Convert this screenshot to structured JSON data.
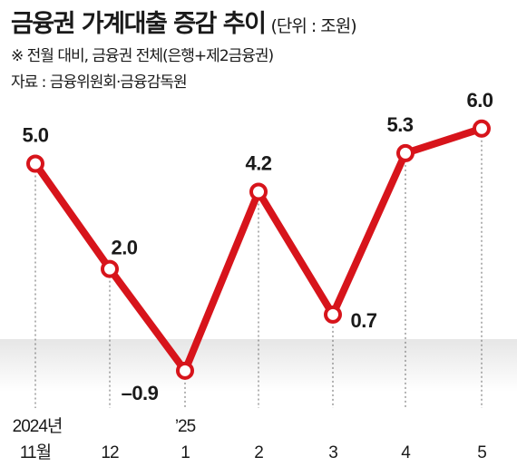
{
  "header": {
    "title": "금융권 가계대출 증감 추이",
    "unit": "(단위 : 조원)",
    "note": "※ 전월 대비, 금융권 전체(은행+제2금융권)",
    "source": "자료 : 금융위원회·금융감독원"
  },
  "chart_data": {
    "type": "line",
    "title": "금융권 가계대출 증감 추이",
    "unit": "조원",
    "categories": [
      "11월",
      "12",
      "1",
      "2",
      "3",
      "4",
      "5"
    ],
    "year_labels": [
      "2024년",
      "",
      "’25",
      "",
      "",
      "",
      ""
    ],
    "values": [
      5.0,
      2.0,
      -0.9,
      4.2,
      0.7,
      5.3,
      6.0
    ],
    "value_labels": [
      "5.0",
      "2.0",
      "–0.9",
      "4.2",
      "0.7",
      "5.3",
      "6.0"
    ],
    "ylim": [
      -1.5,
      7
    ],
    "grid": false,
    "line_color": "#d7141b",
    "negative_band_color": "#e6e6e6"
  }
}
